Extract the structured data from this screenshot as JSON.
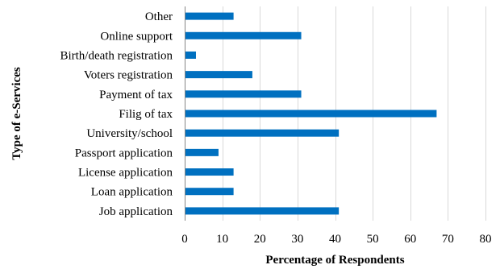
{
  "chart_data": {
    "type": "bar",
    "orientation": "horizontal",
    "title": "",
    "xlabel": "Percentage of Respondents",
    "ylabel": "Type of e-Services",
    "xlim": [
      0,
      80
    ],
    "xticks": [
      0,
      10,
      20,
      30,
      40,
      50,
      60,
      70,
      80
    ],
    "grid": "vertical",
    "legend": "none",
    "bar_color": "#0070C0",
    "categories": [
      "Job application",
      "Loan application",
      "License application",
      "Passport application",
      "University/school",
      "Filig of tax",
      "Payment of tax",
      "Voters registration",
      "Birth/death registration",
      "Online support",
      "Other"
    ],
    "values": [
      41,
      13,
      13,
      9,
      41,
      67,
      31,
      18,
      3,
      31,
      13
    ]
  }
}
